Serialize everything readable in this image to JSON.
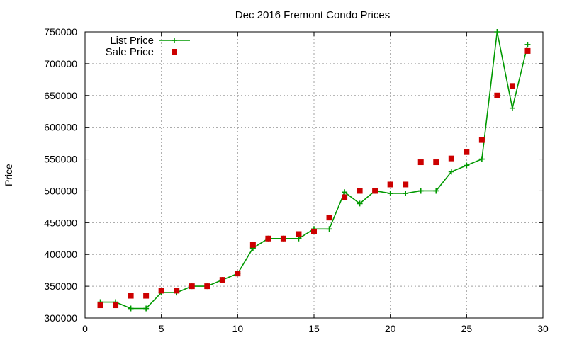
{
  "chart_data": {
    "type": "scatter",
    "title": "Dec 2016 Fremont Condo Prices",
    "xlabel": "",
    "ylabel": "Price",
    "xlim": [
      0,
      30
    ],
    "ylim": [
      300000,
      750000
    ],
    "xticks": [
      0,
      5,
      10,
      15,
      20,
      25,
      30
    ],
    "yticks": [
      300000,
      350000,
      400000,
      450000,
      500000,
      550000,
      600000,
      650000,
      700000,
      750000
    ],
    "grid": true,
    "legend": "top-left",
    "series": [
      {
        "name": "List Price",
        "style": "line+cross",
        "color": "#009900",
        "x": [
          1,
          2,
          3,
          4,
          5,
          6,
          7,
          8,
          9,
          10,
          11,
          12,
          13,
          14,
          15,
          16,
          17,
          18,
          19,
          20,
          21,
          22,
          23,
          24,
          25,
          26,
          27,
          28,
          29
        ],
        "y": [
          325000,
          325000,
          315000,
          315000,
          340000,
          340000,
          350000,
          350000,
          360000,
          370000,
          410000,
          425000,
          425000,
          425000,
          440000,
          440000,
          498000,
          480000,
          500000,
          496000,
          496000,
          500000,
          500000,
          530000,
          540000,
          550000,
          750000,
          630000,
          730000
        ]
      },
      {
        "name": "Sale Price",
        "style": "square",
        "color": "#cc0000",
        "x": [
          1,
          2,
          3,
          4,
          5,
          6,
          7,
          8,
          9,
          10,
          11,
          12,
          13,
          14,
          15,
          16,
          17,
          18,
          19,
          20,
          21,
          22,
          23,
          24,
          25,
          26,
          27,
          28,
          29
        ],
        "y": [
          320000,
          320000,
          335000,
          335000,
          343000,
          343000,
          350000,
          350000,
          360000,
          370000,
          415000,
          425000,
          425000,
          432000,
          436000,
          458000,
          490000,
          500000,
          500000,
          510000,
          510000,
          545000,
          545000,
          551000,
          561000,
          580000,
          650000,
          665000,
          720000
        ]
      }
    ]
  }
}
